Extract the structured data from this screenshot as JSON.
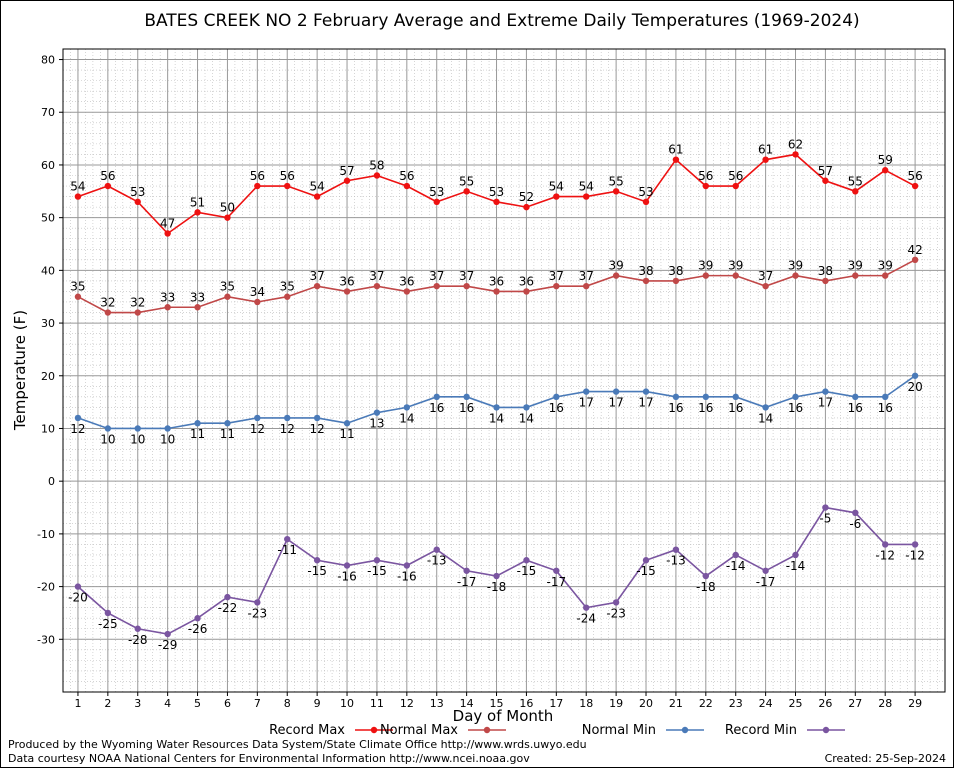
{
  "chart_data": {
    "type": "line",
    "title": "BATES CREEK NO 2 February Average and Extreme Daily Temperatures (1969-2024)",
    "xlabel": "Day of Month",
    "ylabel": "Temperature (F)",
    "ylim": [
      -40,
      82
    ],
    "yticks": [
      -30,
      -20,
      -10,
      0,
      10,
      20,
      30,
      40,
      50,
      60,
      70,
      80
    ],
    "grid": true,
    "legend_position": "bottom",
    "x": [
      1,
      2,
      3,
      4,
      5,
      6,
      7,
      8,
      9,
      10,
      11,
      12,
      13,
      14,
      15,
      16,
      17,
      18,
      19,
      20,
      21,
      22,
      23,
      24,
      25,
      26,
      27,
      28,
      29
    ],
    "series": [
      {
        "name": "Record Max",
        "color": "#ee1111",
        "label_pos": "above",
        "values": [
          54,
          56,
          53,
          47,
          51,
          50,
          56,
          56,
          54,
          57,
          58,
          56,
          53,
          55,
          53,
          52,
          54,
          54,
          55,
          53,
          61,
          56,
          56,
          61,
          62,
          57,
          55,
          59,
          56
        ]
      },
      {
        "name": "Normal Max",
        "color": "#c04848",
        "label_pos": "above",
        "values": [
          35,
          32,
          32,
          33,
          33,
          35,
          34,
          35,
          37,
          36,
          37,
          36,
          37,
          37,
          36,
          36,
          37,
          37,
          39,
          38,
          38,
          39,
          39,
          37,
          39,
          38,
          39,
          39,
          42
        ]
      },
      {
        "name": "Normal Min",
        "color": "#4a7ab8",
        "label_pos": "below",
        "values": [
          12,
          10,
          10,
          10,
          11,
          11,
          12,
          12,
          12,
          11,
          13,
          14,
          16,
          16,
          14,
          14,
          16,
          17,
          17,
          17,
          16,
          16,
          16,
          14,
          16,
          17,
          16,
          16,
          20
        ]
      },
      {
        "name": "Record Min",
        "color": "#7a55a0",
        "label_pos": "below",
        "values": [
          -20,
          -25,
          -28,
          -29,
          -26,
          -22,
          -23,
          -11,
          -15,
          -16,
          -15,
          -16,
          -13,
          -17,
          -18,
          -15,
          -17,
          -24,
          -23,
          -15,
          -13,
          -18,
          -14,
          -17,
          -14,
          -5,
          -6,
          -12,
          -12
        ]
      }
    ]
  },
  "footer": {
    "produced_by": "Produced by the Wyoming Water Resources Data System/State Climate Office http://www.wrds.uwyo.edu",
    "courtesy": "Data courtesy NOAA National Centers for Environmental Information http://www.ncei.noaa.gov",
    "created": "Created:  25-Sep-2024"
  }
}
